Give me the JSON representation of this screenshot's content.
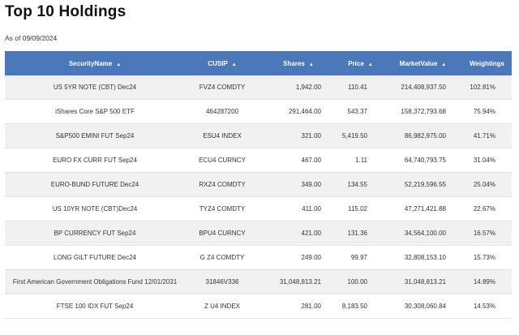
{
  "page": {
    "title": "Top 10 Holdings",
    "as_of": "As of 09/09/2024"
  },
  "table": {
    "columns": [
      {
        "label": "SecurityName",
        "sortable": true
      },
      {
        "label": "CUSIP",
        "sortable": true
      },
      {
        "label": "Shares",
        "sortable": true
      },
      {
        "label": "Price",
        "sortable": true
      },
      {
        "label": "MarketValue",
        "sortable": true
      },
      {
        "label": "Weightings",
        "sortable": false
      }
    ],
    "sort_icon": "▲",
    "rows": [
      {
        "name": "US 5YR NOTE (CBT) Dec24",
        "cusip": "FVZ4 COMDTY",
        "shares": "1,942.00",
        "price": "110.41",
        "market_value": "214,408,937.50",
        "weighting": "102.81%"
      },
      {
        "name": "iShares Core S&P 500 ETF",
        "cusip": "464287200",
        "shares": "291,464.00",
        "price": "543.37",
        "market_value": "158,372,793.68",
        "weighting": "75.94%"
      },
      {
        "name": "S&P500 EMINI FUT Sep24",
        "cusip": "ESU4 INDEX",
        "shares": "321.00",
        "price": "5,419.50",
        "market_value": "86,982,975.00",
        "weighting": "41.71%"
      },
      {
        "name": "EURO FX CURR FUT Sep24",
        "cusip": "ECU4 CURNCY",
        "shares": "467.00",
        "price": "1.11",
        "market_value": "64,740,793.75",
        "weighting": "31.04%"
      },
      {
        "name": "EURO-BUND FUTURE Dec24",
        "cusip": "RXZ4 COMDTY",
        "shares": "349.00",
        "price": "134.55",
        "market_value": "52,219,596.55",
        "weighting": "25.04%"
      },
      {
        "name": "US 10YR NOTE (CBT)Dec24",
        "cusip": "TYZ4 COMDTY",
        "shares": "411.00",
        "price": "115.02",
        "market_value": "47,271,421.88",
        "weighting": "22.67%"
      },
      {
        "name": "BP CURRENCY FUT Sep24",
        "cusip": "BPU4 CURNCY",
        "shares": "421.00",
        "price": "131.36",
        "market_value": "34,564,100.00",
        "weighting": "16.57%"
      },
      {
        "name": "LONG GILT FUTURE Dec24",
        "cusip": "G Z4 COMDTY",
        "shares": "249.00",
        "price": "99.97",
        "market_value": "32,808,153.10",
        "weighting": "15.73%"
      },
      {
        "name": "First American Government Obligations Fund 12/01/2031",
        "cusip": "31846V336",
        "shares": "31,048,813.21",
        "price": "100.00",
        "market_value": "31,048,813.21",
        "weighting": "14.89%"
      },
      {
        "name": "FTSE 100 IDX FUT Sep24",
        "cusip": "Z U4 INDEX",
        "shares": "281.00",
        "price": "8,183.50",
        "market_value": "30,308,060.84",
        "weighting": "14.53%"
      }
    ]
  }
}
